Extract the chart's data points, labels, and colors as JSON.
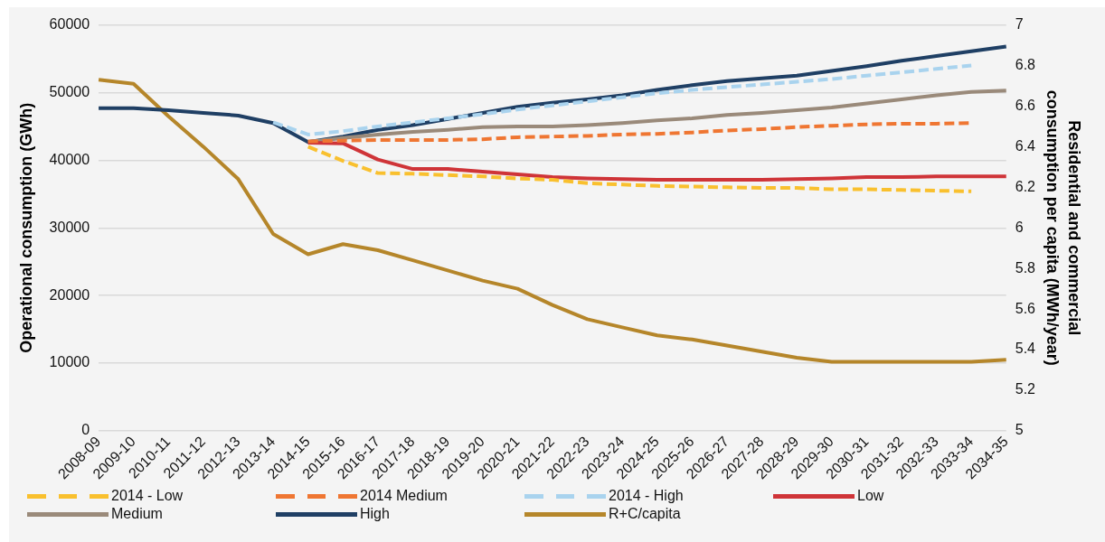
{
  "chart_data": {
    "type": "line",
    "ylabel": "Operational consumption (GWh)",
    "y2label": "Residential and commercial consumption per capita (MWh/year)",
    "categories": [
      "2008-09",
      "2009-10",
      "2010-11",
      "2011-12",
      "2012-13",
      "2013-14",
      "2014-15",
      "2015-16",
      "2016-17",
      "2017-18",
      "2018-19",
      "2019-20",
      "2020-21",
      "2021-22",
      "2022-23",
      "2023-24",
      "2024-25",
      "2025-26",
      "2026-27",
      "2027-28",
      "2028-29",
      "2029-30",
      "2030-31",
      "2031-32",
      "2032-33",
      "2033-34",
      "2034-35"
    ],
    "series": [
      {
        "name": "2014 - Low",
        "color": "#f9c02e",
        "line_style": "dashed",
        "values": [
          null,
          null,
          null,
          null,
          null,
          null,
          42000,
          39900,
          38100,
          38000,
          37800,
          37600,
          37300,
          37100,
          36600,
          36400,
          36200,
          36100,
          36000,
          35900,
          35900,
          35700,
          35700,
          35600,
          35500,
          35400,
          null
        ]
      },
      {
        "name": "2014 Medium",
        "color": "#ef7632",
        "line_style": "dashed",
        "values": [
          null,
          null,
          null,
          null,
          null,
          null,
          42800,
          42900,
          43000,
          43000,
          43000,
          43100,
          43400,
          43500,
          43600,
          43800,
          43900,
          44100,
          44400,
          44600,
          44900,
          45100,
          45300,
          45400,
          45400,
          45500,
          null
        ]
      },
      {
        "name": "2014 - High",
        "color": "#a9d3ee",
        "line_style": "dashed",
        "values": [
          null,
          null,
          null,
          null,
          null,
          45600,
          43800,
          44300,
          45000,
          45600,
          46200,
          46800,
          47500,
          48100,
          48700,
          49300,
          49900,
          50400,
          50800,
          51200,
          51600,
          52000,
          52500,
          53000,
          53500,
          54000,
          null
        ]
      },
      {
        "name": "Low",
        "color": "#cf3438",
        "line_style": "solid",
        "values": [
          null,
          null,
          null,
          null,
          null,
          null,
          42600,
          42500,
          40100,
          38700,
          38700,
          38300,
          37900,
          37500,
          37300,
          37200,
          37100,
          37100,
          37100,
          37100,
          37200,
          37300,
          37500,
          37500,
          37600,
          37600,
          37600
        ]
      },
      {
        "name": "Medium",
        "color": "#9a8a7a",
        "line_style": "solid",
        "values": [
          null,
          null,
          null,
          null,
          null,
          null,
          42700,
          43300,
          43800,
          44200,
          44500,
          44900,
          45000,
          45000,
          45200,
          45500,
          45900,
          46200,
          46700,
          47000,
          47400,
          47800,
          48400,
          49000,
          49600,
          50100,
          50300
        ]
      },
      {
        "name": "High",
        "color": "#1f3f64",
        "line_style": "solid",
        "values": [
          47700,
          47700,
          47400,
          47000,
          46600,
          45500,
          42700,
          43500,
          44500,
          45200,
          46100,
          47000,
          47900,
          48500,
          49000,
          49600,
          50400,
          51100,
          51700,
          52100,
          52500,
          53200,
          53900,
          54700,
          55400,
          56100,
          56800
        ]
      },
      {
        "name": "R+C/capita",
        "color": "#b5862a",
        "line_style": "solid",
        "axis": "y2",
        "values": [
          6.73,
          6.71,
          6.55,
          6.4,
          6.24,
          5.97,
          5.87,
          5.92,
          5.89,
          5.84,
          5.79,
          5.74,
          5.7,
          5.62,
          5.55,
          5.51,
          5.47,
          5.45,
          5.42,
          5.39,
          5.36,
          5.34,
          5.34,
          5.34,
          5.34,
          5.34,
          5.35
        ]
      }
    ],
    "ylim": [
      0,
      60000
    ],
    "yticks": [
      0,
      10000,
      20000,
      30000,
      40000,
      50000,
      60000
    ],
    "y2lim": [
      5,
      7
    ],
    "y2ticks": [
      5,
      5.2,
      5.4,
      5.6,
      5.8,
      6,
      6.2,
      6.4,
      6.6,
      6.8,
      7
    ],
    "grid": "y",
    "legend": "bottom",
    "marker": "none"
  }
}
